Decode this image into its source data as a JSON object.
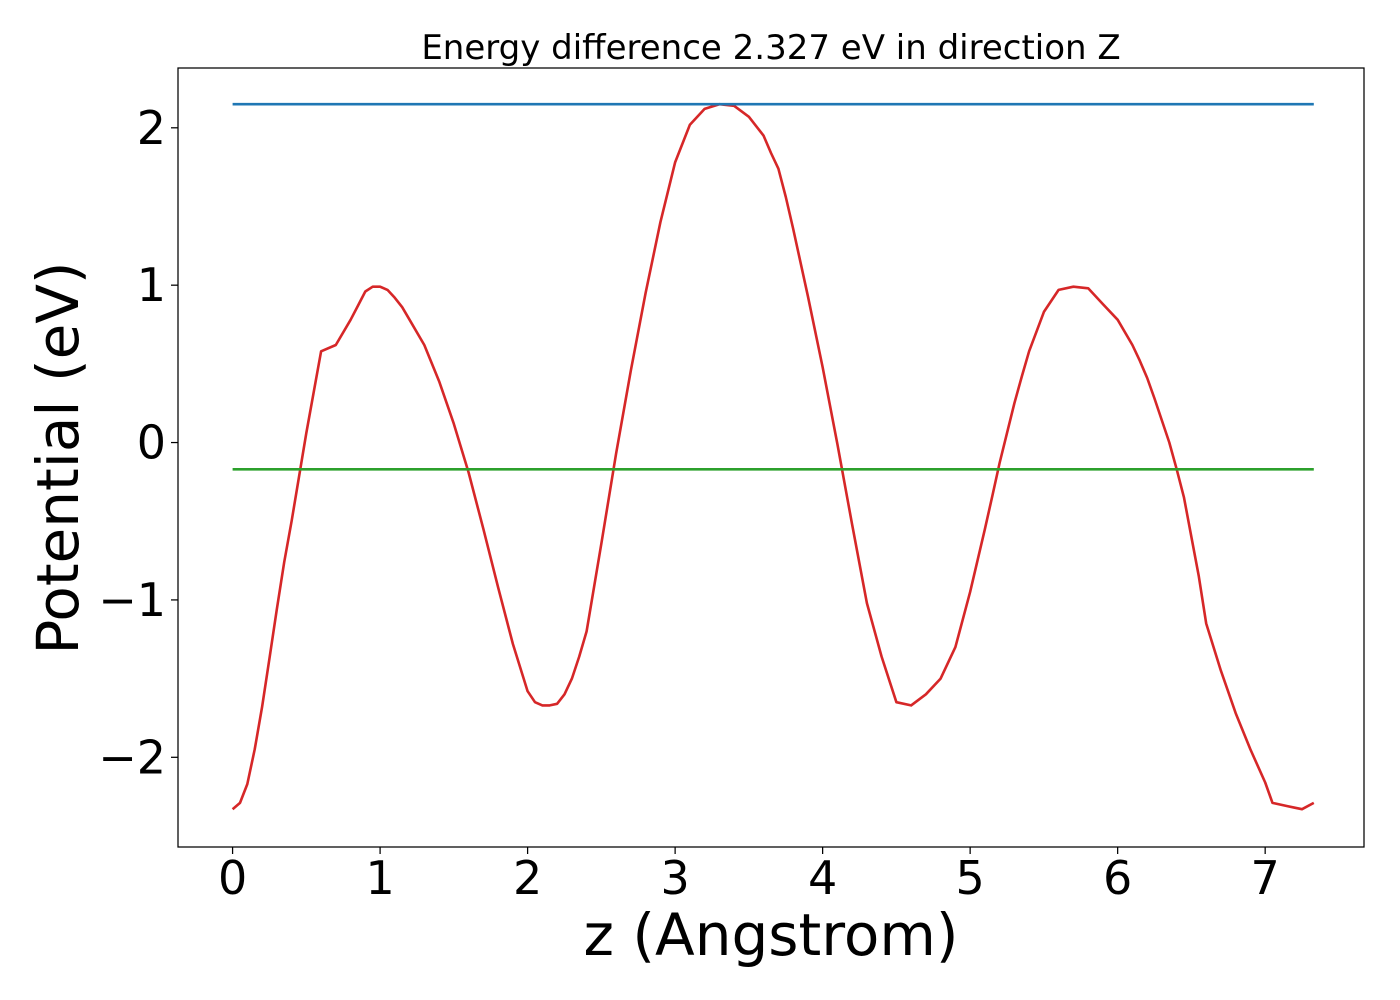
{
  "chart_data": {
    "type": "line",
    "title": "Energy difference 2.327 eV in direction Z",
    "xlabel": "z (Angstrom)",
    "ylabel": "Potential (eV)",
    "xlim": [
      -0.37,
      7.67
    ],
    "ylim": [
      -2.57,
      2.38
    ],
    "xticks": [
      0,
      1,
      2,
      3,
      4,
      5,
      6,
      7
    ],
    "xtick_labels": [
      "0",
      "1",
      "2",
      "3",
      "4",
      "5",
      "6",
      "7"
    ],
    "yticks": [
      -2,
      -1,
      0,
      1,
      2
    ],
    "ytick_labels": [
      "−2",
      "−1",
      "0",
      "1",
      "2"
    ],
    "grid": false,
    "legend": "none",
    "series": [
      {
        "color": "#d62728",
        "x": [
          0.0,
          0.05,
          0.1,
          0.15,
          0.2,
          0.25,
          0.3,
          0.35,
          0.4,
          0.5,
          0.6,
          0.7,
          0.8,
          0.85,
          0.9,
          0.95,
          1.0,
          1.05,
          1.1,
          1.15,
          1.2,
          1.3,
          1.4,
          1.5,
          1.6,
          1.7,
          1.8,
          1.9,
          2.0,
          2.05,
          2.1,
          2.15,
          2.2,
          2.25,
          2.3,
          2.35,
          2.4,
          2.5,
          2.6,
          2.7,
          2.8,
          2.9,
          3.0,
          3.1,
          3.2,
          3.3,
          3.4,
          3.5,
          3.6,
          3.65,
          3.7,
          3.75,
          3.8,
          3.9,
          4.0,
          4.1,
          4.2,
          4.3,
          4.4,
          4.5,
          4.6,
          4.7,
          4.8,
          4.9,
          5.0,
          5.05,
          5.1,
          5.15,
          5.2,
          5.25,
          5.3,
          5.35,
          5.4,
          5.5,
          5.6,
          5.7,
          5.8,
          5.9,
          6.0,
          6.1,
          6.15,
          6.2,
          6.25,
          6.3,
          6.35,
          6.4,
          6.45,
          6.5,
          6.55,
          6.6,
          6.7,
          6.8,
          6.9,
          7.0,
          7.05,
          7.1,
          7.15,
          7.2,
          7.25,
          7.33
        ],
        "y": [
          -2.33,
          -2.29,
          -2.17,
          -1.95,
          -1.68,
          -1.37,
          -1.06,
          -0.76,
          -0.5,
          0.06,
          0.58,
          0.62,
          0.78,
          0.87,
          0.96,
          0.99,
          0.99,
          0.97,
          0.92,
          0.86,
          0.78,
          0.62,
          0.39,
          0.12,
          -0.19,
          -0.55,
          -0.92,
          -1.28,
          -1.58,
          -1.65,
          -1.67,
          -1.67,
          -1.66,
          -1.6,
          -1.5,
          -1.36,
          -1.2,
          -0.64,
          -0.07,
          0.46,
          0.95,
          1.4,
          1.78,
          2.02,
          2.12,
          2.15,
          2.14,
          2.07,
          1.95,
          1.84,
          1.74,
          1.56,
          1.36,
          0.93,
          0.48,
          -0.01,
          -0.52,
          -1.02,
          -1.36,
          -1.65,
          -1.67,
          -1.6,
          -1.5,
          -1.3,
          -0.95,
          -0.75,
          -0.55,
          -0.34,
          -0.13,
          0.06,
          0.25,
          0.42,
          0.58,
          0.83,
          0.97,
          0.99,
          0.98,
          0.88,
          0.78,
          0.62,
          0.52,
          0.41,
          0.28,
          0.14,
          0.0,
          -0.17,
          -0.35,
          -0.6,
          -0.85,
          -1.15,
          -1.45,
          -1.72,
          -1.95,
          -2.16,
          -2.29,
          -2.3,
          -2.31,
          -2.32,
          -2.33,
          -2.29
        ]
      },
      {
        "color": "#1f77b4",
        "x": [
          0.0,
          7.33
        ],
        "y": [
          2.15,
          2.15
        ]
      },
      {
        "color": "#2ca02c",
        "x": [
          0.0,
          7.33
        ],
        "y": [
          -0.17,
          -0.17
        ]
      }
    ]
  }
}
